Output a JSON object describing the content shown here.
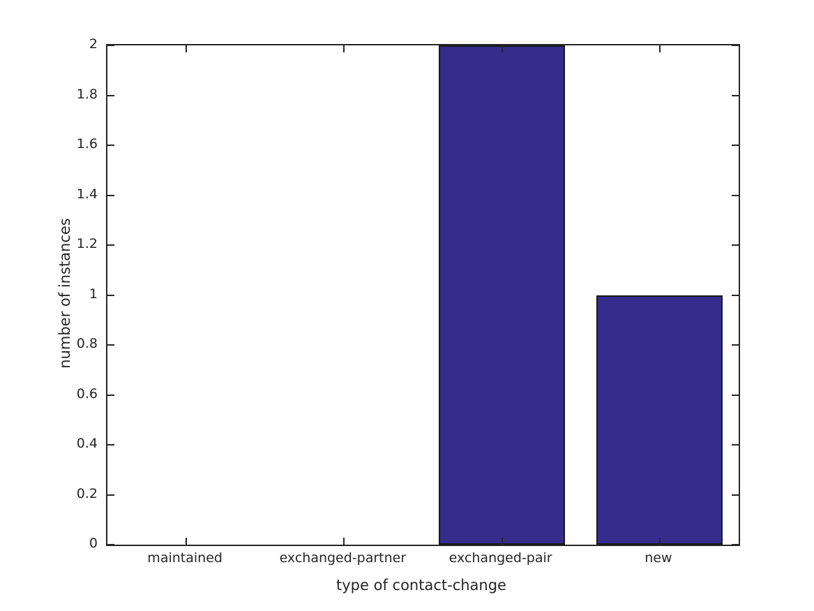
{
  "chart_data": {
    "type": "bar",
    "title": "",
    "xlabel": "type of contact-change",
    "ylabel": "number of instances",
    "categories": [
      "maintained",
      "exchanged-partner",
      "exchanged-pair",
      "new"
    ],
    "values": [
      0,
      0,
      2,
      1
    ],
    "ylim": [
      0,
      2
    ],
    "yticks": [
      0,
      0.2,
      0.4,
      0.6,
      0.8,
      1,
      1.2,
      1.4,
      1.6,
      1.8,
      2
    ],
    "ytick_labels": [
      "0",
      "0.2",
      "0.4",
      "0.6",
      "0.8",
      "1",
      "1.2",
      "1.4",
      "1.6",
      "1.8",
      "2"
    ],
    "bar_width_fraction": 0.8,
    "grid": false,
    "legend": null,
    "box": true,
    "tick_direction": "in",
    "bar_color": "#352c8b",
    "bar_edge_color": "#1a1a1a",
    "axis_color": "#262626",
    "text_color": "#262626",
    "background_color": "#ffffff"
  }
}
